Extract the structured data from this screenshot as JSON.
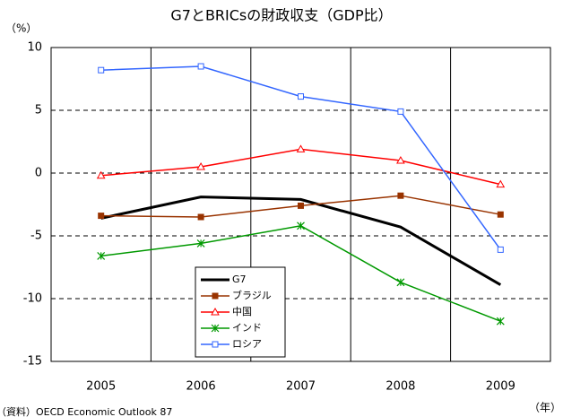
{
  "chart_data": {
    "type": "line",
    "title": "G7とBRICsの財政収支（GDP比）",
    "y_label": "（%）",
    "x_label": "（年）",
    "source": "（資料）OECD Economic Outlook 87",
    "categories": [
      "2005",
      "2006",
      "2007",
      "2008",
      "2009"
    ],
    "series": [
      {
        "name": "G7",
        "color": "#000000",
        "marker": "none",
        "values": [
          -3.6,
          -1.9,
          -2.1,
          -4.3,
          -8.9
        ]
      },
      {
        "name": "ブラジル",
        "color": "#993300",
        "marker": "filled-square",
        "values": [
          -3.4,
          -3.5,
          -2.6,
          -1.8,
          -3.3
        ]
      },
      {
        "name": "中国",
        "color": "#ff0000",
        "marker": "triangle",
        "values": [
          -0.2,
          0.5,
          1.9,
          1.0,
          -0.9
        ]
      },
      {
        "name": "インド",
        "color": "#009900",
        "marker": "asterisk",
        "values": [
          -6.6,
          -5.6,
          -4.2,
          -8.7,
          -11.8
        ]
      },
      {
        "name": "ロシア",
        "color": "#3366ff",
        "marker": "square",
        "values": [
          8.2,
          8.5,
          6.1,
          4.9,
          -6.1
        ]
      }
    ],
    "ylim": [
      -15,
      10
    ],
    "yticks": [
      -15,
      -10,
      -5,
      0,
      5,
      10
    ],
    "grid": true
  }
}
